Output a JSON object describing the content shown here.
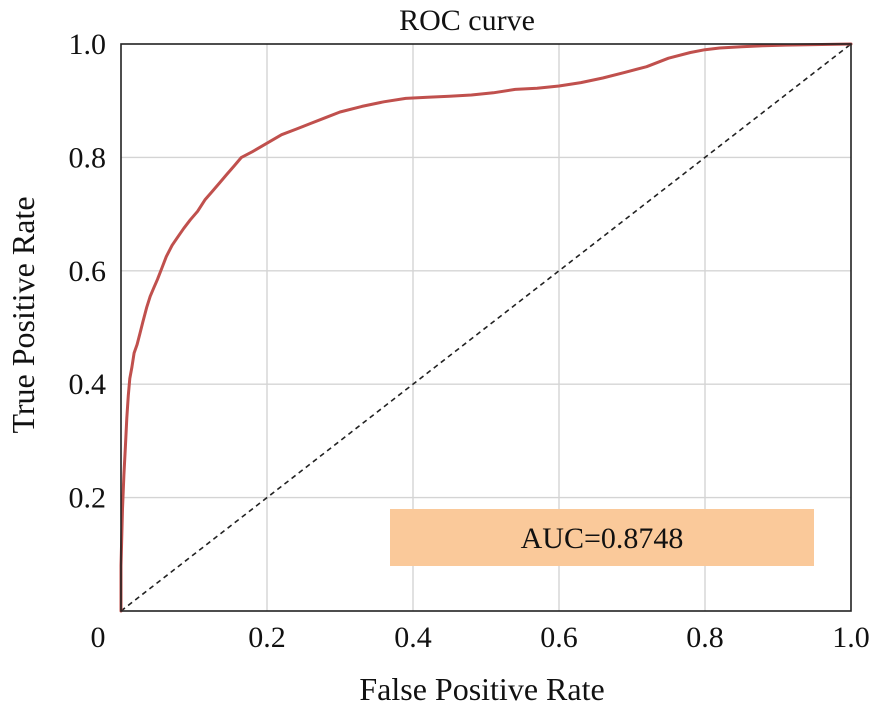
{
  "chart_data": {
    "type": "line",
    "title": "ROC curve",
    "xlabel": "False Positive Rate",
    "ylabel": "True Positive Rate",
    "xlim": [
      0,
      1
    ],
    "ylim": [
      0,
      1
    ],
    "grid": true,
    "x_ticks": [
      {
        "value": 0,
        "label": "0"
      },
      {
        "value": 0.2,
        "label": "0.2"
      },
      {
        "value": 0.4,
        "label": "0.4"
      },
      {
        "value": 0.6,
        "label": "0.6"
      },
      {
        "value": 0.8,
        "label": "0.8"
      },
      {
        "value": 1.0,
        "label": "1.0"
      }
    ],
    "y_ticks": [
      {
        "value": 0.2,
        "label": "0.2"
      },
      {
        "value": 0.4,
        "label": "0.4"
      },
      {
        "value": 0.6,
        "label": "0.6"
      },
      {
        "value": 0.8,
        "label": "0.8"
      },
      {
        "value": 1.0,
        "label": "1.0"
      }
    ],
    "series": [
      {
        "color": "#c0504d",
        "x": [
          0,
          0,
          0.002,
          0.004,
          0.006,
          0.008,
          0.01,
          0.012,
          0.015,
          0.018,
          0.022,
          0.026,
          0.03,
          0.035,
          0.04,
          0.045,
          0.05,
          0.056,
          0.062,
          0.07,
          0.078,
          0.086,
          0.095,
          0.105,
          0.115,
          0.125,
          0.135,
          0.145,
          0.155,
          0.165,
          0.18,
          0.2,
          0.22,
          0.24,
          0.26,
          0.28,
          0.3,
          0.33,
          0.36,
          0.39,
          0.42,
          0.45,
          0.48,
          0.51,
          0.54,
          0.57,
          0.6,
          0.63,
          0.66,
          0.69,
          0.72,
          0.75,
          0.78,
          0.8,
          0.82,
          0.85,
          0.88,
          0.91,
          0.95,
          1.0
        ],
        "y": [
          0,
          0.08,
          0.18,
          0.24,
          0.29,
          0.34,
          0.38,
          0.41,
          0.43,
          0.455,
          0.47,
          0.49,
          0.51,
          0.535,
          0.555,
          0.57,
          0.585,
          0.605,
          0.625,
          0.645,
          0.66,
          0.675,
          0.69,
          0.705,
          0.725,
          0.74,
          0.755,
          0.77,
          0.785,
          0.8,
          0.81,
          0.825,
          0.84,
          0.85,
          0.86,
          0.87,
          0.88,
          0.89,
          0.898,
          0.904,
          0.906,
          0.908,
          0.91,
          0.914,
          0.92,
          0.922,
          0.926,
          0.932,
          0.94,
          0.95,
          0.96,
          0.975,
          0.985,
          0.99,
          0.993,
          0.995,
          0.997,
          0.998,
          0.999,
          1.0
        ]
      }
    ],
    "reference_line": {
      "color": "#222222",
      "style": "dashed",
      "x": [
        0,
        1
      ],
      "y": [
        0,
        1
      ]
    },
    "annotation": {
      "text": "AUC=0.8748",
      "background": "#fac99a"
    }
  }
}
